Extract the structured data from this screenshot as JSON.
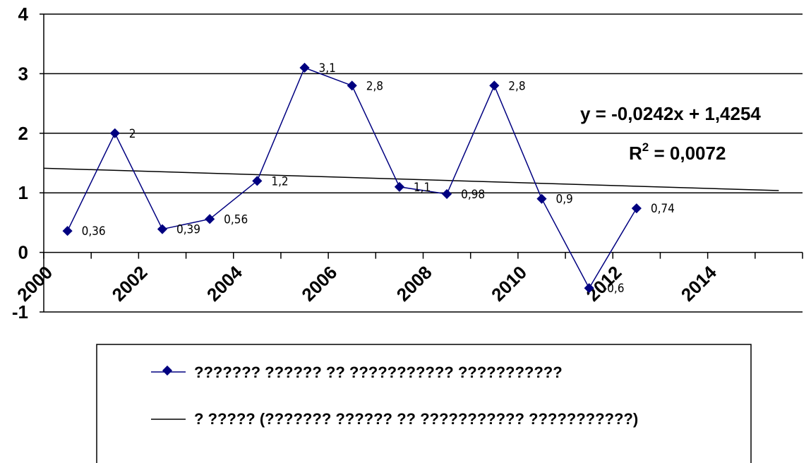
{
  "chart_data": {
    "type": "line",
    "x": [
      2000.5,
      2001.5,
      2002.5,
      2003.5,
      2004.5,
      2005.5,
      2006.5,
      2007.5,
      2008.5,
      2009.5,
      2010.5,
      2011.5,
      2012.5
    ],
    "series": [
      {
        "name": "??????? ?????? ?? ??????????? ???????????",
        "values": [
          0.36,
          2,
          0.39,
          0.56,
          1.2,
          3.1,
          2.8,
          1.1,
          0.98,
          2.8,
          0.9,
          -0.6,
          0.74
        ],
        "labels": [
          "0,36",
          "2",
          "0,39",
          "0,56",
          "1,2",
          "3,1",
          "2,8",
          "1,1",
          "0,98",
          "2,8",
          "0,9",
          "-0,6",
          "0,74"
        ],
        "color": "#000080"
      }
    ],
    "trendline": {
      "name": "? ????? (??????? ?????? ?? ??????????? ???????????)",
      "slope": -0.0242,
      "intercept": 1.4254,
      "x_range": [
        2000,
        2015.5
      ],
      "equation": "y = -0,0242x + 1,4254",
      "r2_prefix": "R",
      "r2_sup": "2",
      "r2_value": " = 0,0072",
      "color": "#000000"
    },
    "xlim": [
      2000,
      2016
    ],
    "ylim": [
      -1,
      4
    ],
    "xticks": [
      2002,
      2004,
      2006,
      2008,
      2010,
      2012,
      2014
    ],
    "xtick_labels": [
      "2002",
      "2004",
      "2006",
      "2008",
      "2010",
      "2012",
      "2014"
    ],
    "x_origin_label": "2000",
    "yticks": [
      -1,
      0,
      1,
      2,
      3,
      4
    ],
    "ytick_labels": [
      "-1",
      "0",
      "1",
      "2",
      "3",
      "4"
    ],
    "grid": "horizontal",
    "legend_position": "bottom",
    "title": "",
    "xlabel": "",
    "ylabel": ""
  }
}
